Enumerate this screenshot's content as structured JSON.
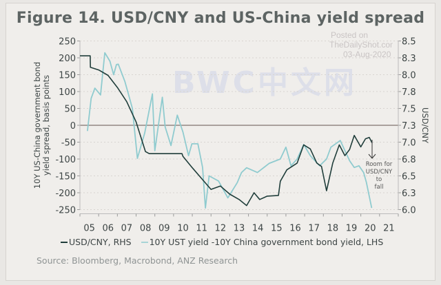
{
  "title": "Figure 14. USD/CNY and US-China yield spread",
  "watermark": {
    "line1": "Posted on",
    "line2": "TheDailyShot.com",
    "line3": "03-Aug-2020",
    "overlay": "BWC中文网"
  },
  "legend": {
    "usdcny": "USD/CNY, RHS",
    "spread": "10Y UST yield -10Y China government bond yield, LHS"
  },
  "source": "Source: Bloomberg, Macrobond, ANZ Research",
  "annotation": "Room for USD/CNY to fall",
  "colors": {
    "usdcny": "#1f3d3a",
    "spread": "#8fcbcf",
    "zero_line": "#a9a09c",
    "text": "#3c4444"
  },
  "chart_data": {
    "type": "line",
    "title": "Figure 14. USD/CNY and US-China yield spread",
    "ylabel_left": "10Y US-China government bond yield spread, basis points",
    "ylabel_right": "USD/CNY",
    "x_ticks": [
      "05",
      "06",
      "07",
      "08",
      "09",
      "10",
      "11",
      "12",
      "13",
      "14",
      "15",
      "16",
      "17",
      "18",
      "19",
      "20",
      "21"
    ],
    "xlim": [
      2005,
      2022
    ],
    "ylim_left": [
      -250,
      250
    ],
    "yticks_left": [
      "250",
      "200",
      "150",
      "100",
      "50",
      "0",
      "-50",
      "-100",
      "-150",
      "-200",
      "-250"
    ],
    "ylim_right": [
      6.0,
      8.5
    ],
    "yticks_right": [
      "8.5",
      "8.3",
      "8.0",
      "7.8",
      "7.5",
      "7.3",
      "7.0",
      "6.8",
      "6.5",
      "6.3",
      "6.0"
    ],
    "grid": true,
    "legend_position": "bottom",
    "series": [
      {
        "name": "USD/CNY, RHS",
        "axis": "right",
        "x": [
          2005.0,
          2005.55,
          2005.56,
          2006.0,
          2006.5,
          2007.0,
          2007.5,
          2008.0,
          2008.5,
          2008.7,
          2010.45,
          2010.5,
          2011.0,
          2011.5,
          2012.0,
          2012.5,
          2013.0,
          2013.5,
          2013.9,
          2014.3,
          2014.6,
          2015.0,
          2015.6,
          2015.7,
          2016.05,
          2016.6,
          2016.95,
          2017.3,
          2017.65,
          2017.9,
          2018.17,
          2018.5,
          2018.85,
          2019.15,
          2019.4,
          2019.65,
          2020.0,
          2020.25,
          2020.45,
          2020.6
        ],
        "y": [
          8.28,
          8.28,
          8.11,
          8.07,
          7.99,
          7.81,
          7.6,
          7.3,
          6.86,
          6.83,
          6.83,
          6.79,
          6.62,
          6.46,
          6.3,
          6.35,
          6.23,
          6.15,
          6.06,
          6.25,
          6.15,
          6.2,
          6.21,
          6.42,
          6.59,
          6.69,
          6.96,
          6.9,
          6.69,
          6.64,
          6.28,
          6.69,
          6.96,
          6.8,
          6.89,
          7.1,
          6.93,
          7.05,
          7.07,
          6.99
        ]
      },
      {
        "name": "10Y UST yield -10Y China government bond yield, LHS",
        "axis": "left",
        "x": [
          2005.4,
          2005.6,
          2005.8,
          2006.1,
          2006.33,
          2006.6,
          2006.8,
          2006.95,
          2007.05,
          2007.4,
          2007.6,
          2007.8,
          2008.07,
          2008.46,
          2008.87,
          2009.0,
          2009.4,
          2009.55,
          2009.86,
          2010.2,
          2010.5,
          2010.8,
          2010.98,
          2011.3,
          2011.55,
          2011.7,
          2011.9,
          2012.4,
          2012.9,
          2013.4,
          2013.63,
          2013.9,
          2014.48,
          2015.1,
          2015.7,
          2016.0,
          2016.27,
          2016.6,
          2016.95,
          2017.3,
          2017.8,
          2018.17,
          2018.4,
          2018.9,
          2019.15,
          2019.4,
          2019.65,
          2019.9,
          2020.15,
          2020.3,
          2020.58
        ],
        "y": [
          -17,
          80,
          110,
          90,
          215,
          190,
          150,
          180,
          181,
          130,
          90,
          50,
          -98,
          -23,
          93,
          -75,
          83,
          -5,
          -60,
          30,
          -20,
          -90,
          -55,
          -55,
          -125,
          -245,
          -150,
          -165,
          -215,
          -170,
          -140,
          -126,
          -140,
          -113,
          -100,
          -65,
          -120,
          -100,
          -57,
          -90,
          -120,
          -100,
          -65,
          -45,
          -75,
          -105,
          -125,
          -120,
          -140,
          -170,
          -245
        ]
      }
    ]
  }
}
